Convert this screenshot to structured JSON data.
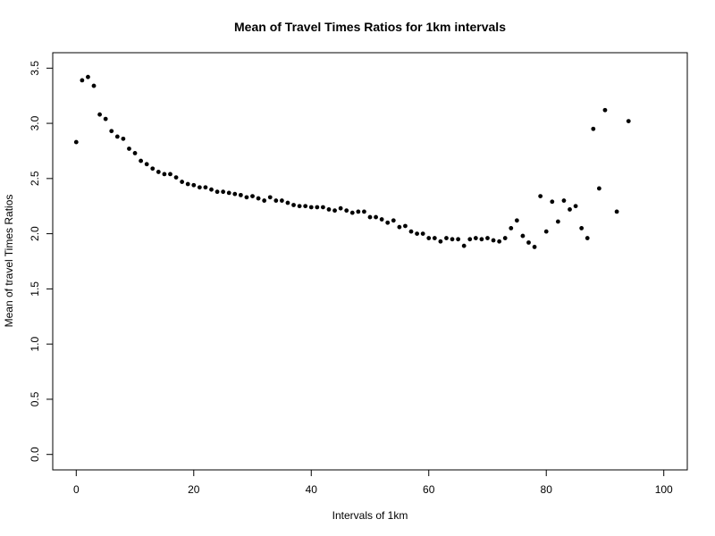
{
  "chart_data": {
    "type": "scatter",
    "title": "Mean of Travel Times Ratios for 1km intervals",
    "xlabel": "Intervals of 1km",
    "ylabel": "Mean of travel Times Ratios",
    "xlim": [
      -4,
      104
    ],
    "ylim": [
      -0.14,
      3.64
    ],
    "x_ticks": [
      0,
      20,
      40,
      60,
      80,
      100
    ],
    "x_tick_labels": [
      "0",
      "20",
      "40",
      "60",
      "80",
      "100"
    ],
    "y_ticks": [
      0.0,
      0.5,
      1.0,
      1.5,
      2.0,
      2.5,
      3.0,
      3.5
    ],
    "y_tick_labels": [
      "0.0",
      "0.5",
      "1.0",
      "1.5",
      "2.0",
      "2.5",
      "3.0",
      "3.5"
    ],
    "grid": false,
    "legend": "none",
    "point_color": "#000000",
    "series": [
      {
        "x": [
          0,
          1,
          2,
          3,
          4,
          5,
          6,
          7,
          8,
          9,
          10,
          11,
          12,
          13,
          14,
          15,
          16,
          17,
          18,
          19,
          20,
          21,
          22,
          23,
          24,
          25,
          26,
          27,
          28,
          29,
          30,
          31,
          32,
          33,
          34,
          35,
          36,
          37,
          38,
          39,
          40,
          41,
          42,
          43,
          44,
          45,
          46,
          47,
          48,
          49,
          50,
          51,
          52,
          53,
          54,
          55,
          56,
          57,
          58,
          59,
          60,
          61,
          62,
          63,
          64,
          65,
          66,
          67,
          68,
          69,
          70,
          71,
          72,
          73,
          74,
          75,
          76,
          77,
          78,
          79,
          80,
          81,
          82,
          83,
          84,
          85,
          86,
          87,
          88,
          89,
          90,
          92,
          94
        ],
        "y": [
          2.83,
          3.39,
          3.42,
          3.34,
          3.08,
          3.04,
          2.93,
          2.88,
          2.86,
          2.77,
          2.73,
          2.66,
          2.63,
          2.59,
          2.56,
          2.54,
          2.54,
          2.51,
          2.47,
          2.45,
          2.44,
          2.42,
          2.42,
          2.4,
          2.38,
          2.38,
          2.37,
          2.36,
          2.35,
          2.33,
          2.34,
          2.32,
          2.3,
          2.33,
          2.3,
          2.3,
          2.28,
          2.26,
          2.25,
          2.25,
          2.24,
          2.24,
          2.24,
          2.22,
          2.21,
          2.23,
          2.21,
          2.19,
          2.2,
          2.2,
          2.15,
          2.15,
          2.13,
          2.1,
          2.12,
          2.06,
          2.07,
          2.02,
          2.0,
          2.0,
          1.96,
          1.96,
          1.93,
          1.96,
          1.95,
          1.95,
          1.89,
          1.95,
          1.96,
          1.95,
          1.96,
          1.94,
          1.93,
          1.96,
          2.05,
          2.12,
          1.98,
          1.92,
          1.88,
          2.34,
          2.02,
          2.29,
          2.11,
          2.3,
          2.22,
          2.25,
          2.05,
          1.96,
          2.95,
          2.41,
          3.12,
          2.2,
          3.02
        ]
      }
    ]
  }
}
